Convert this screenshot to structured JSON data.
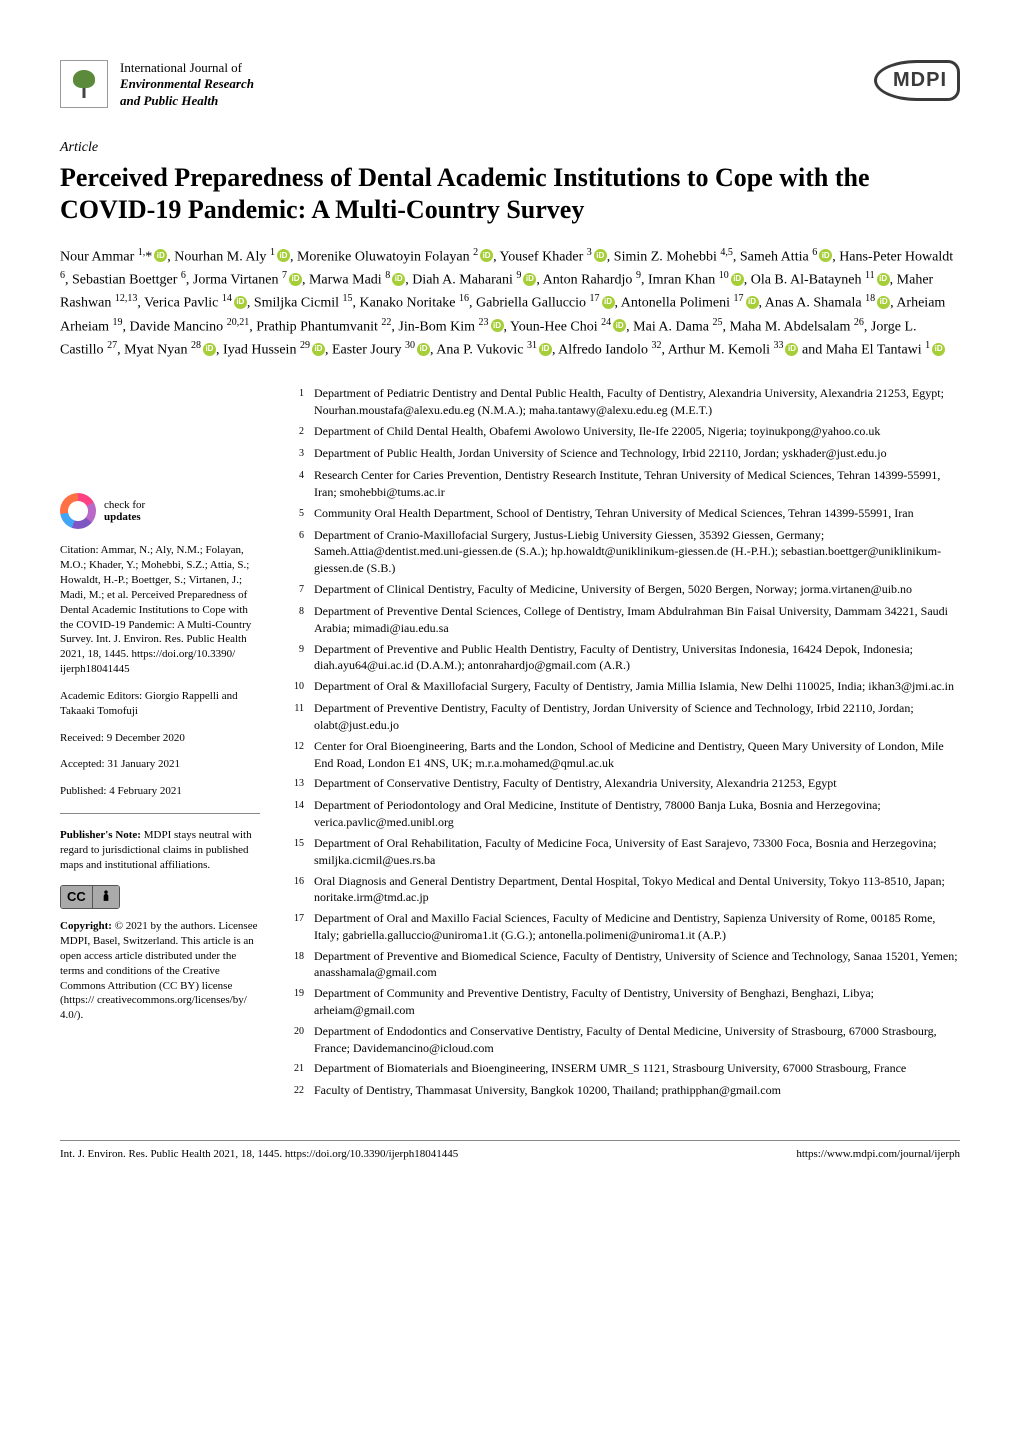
{
  "journal": {
    "line1": "International Journal of",
    "line2": "Environmental Research",
    "line3": "and Public Health"
  },
  "publisher_logo": "MDPI",
  "article_type": "Article",
  "title": "Perceived Preparedness of Dental Academic Institutions to Cope with the COVID-19 Pandemic: A Multi-Country Survey",
  "authors_html": "Nour Ammar <sup>1,</sup>*<ORCID>, Nourhan M. Aly <sup>1</sup><ORCID>, Morenike Oluwatoyin Folayan <sup>2</sup><ORCID>, Yousef Khader <sup>3</sup><ORCID>, Simin Z. Mohebbi <sup>4,5</sup>, Sameh Attia <sup>6</sup><ORCID>, Hans-Peter Howaldt <sup>6</sup>, Sebastian Boettger <sup>6</sup>, Jorma Virtanen <sup>7</sup><ORCID>, Marwa Madi <sup>8</sup><ORCID>, Diah A. Maharani <sup>9</sup><ORCID>, Anton Rahardjo <sup>9</sup>, Imran Khan <sup>10</sup><ORCID>, Ola B. Al-Batayneh <sup>11</sup><ORCID>, Maher Rashwan <sup>12,13</sup>, Verica Pavlic <sup>14</sup><ORCID>, Smiljka Cicmil <sup>15</sup>, Kanako Noritake <sup>16</sup>, Gabriella Galluccio <sup>17</sup><ORCID>, Antonella Polimeni <sup>17</sup><ORCID>, Anas A. Shamala <sup>18</sup><ORCID>, Arheiam Arheiam <sup>19</sup>, Davide Mancino <sup>20,21</sup>, Prathip Phantumvanit <sup>22</sup>, Jin-Bom Kim <sup>23</sup><ORCID>, Youn-Hee Choi <sup>24</sup><ORCID>, Mai A. Dama <sup>25</sup>, Maha M. Abdelsalam <sup>26</sup>, Jorge L. Castillo <sup>27</sup>, Myat Nyan <sup>28</sup><ORCID>, Iyad Hussein <sup>29</sup><ORCID>, Easter Joury <sup>30</sup><ORCID>, Ana P. Vukovic <sup>31</sup><ORCID>, Alfredo Iandolo <sup>32</sup>, Arthur M. Kemoli <sup>33</sup><ORCID> and Maha El Tantawi <sup>1</sup><ORCID>",
  "check_for": "check for",
  "updates": "updates",
  "citation": "Citation: Ammar, N.; Aly, N.M.; Folayan, M.O.; Khader, Y.; Mohebbi, S.Z.; Attia, S.; Howaldt, H.-P.; Boettger, S.; Virtanen, J.; Madi, M.; et al. Perceived Preparedness of Dental Academic Institutions to Cope with the COVID-19 Pandemic: A Multi-Country Survey. Int. J. Environ. Res. Public Health 2021, 18, 1445. https://doi.org/10.3390/ ijerph18041445",
  "editors": "Academic Editors: Giorgio Rappelli and Takaaki Tomofuji",
  "received": "Received: 9 December 2020",
  "accepted": "Accepted: 31 January 2021",
  "published": "Published: 4 February 2021",
  "pubnote": "Publisher's Note: MDPI stays neutral with regard to jurisdictional claims in published maps and institutional affiliations.",
  "copyright": "Copyright: © 2021 by the authors. Licensee MDPI, Basel, Switzerland. This article is an open access article distributed under the terms and conditions of the Creative Commons Attribution (CC BY) license (https:// creativecommons.org/licenses/by/ 4.0/).",
  "cc_label_cc": "CC",
  "cc_label_by": "BY",
  "affiliations": [
    {
      "n": "1",
      "t": "Department of Pediatric Dentistry and Dental Public Health, Faculty of Dentistry, Alexandria University, Alexandria 21253, Egypt; Nourhan.moustafa@alexu.edu.eg (N.M.A.); maha.tantawy@alexu.edu.eg (M.E.T.)"
    },
    {
      "n": "2",
      "t": "Department of Child Dental Health, Obafemi Awolowo University, Ile-Ife 22005, Nigeria; toyinukpong@yahoo.co.uk"
    },
    {
      "n": "3",
      "t": "Department of Public Health, Jordan University of Science and Technology, Irbid 22110, Jordan; yskhader@just.edu.jo"
    },
    {
      "n": "4",
      "t": "Research Center for Caries Prevention, Dentistry Research Institute, Tehran University of Medical Sciences, Tehran 14399-55991, Iran; smohebbi@tums.ac.ir"
    },
    {
      "n": "5",
      "t": "Community Oral Health Department, School of Dentistry, Tehran University of Medical Sciences, Tehran 14399-55991, Iran"
    },
    {
      "n": "6",
      "t": "Department of Cranio-Maxillofacial Surgery, Justus-Liebig University Giessen, 35392 Giessen, Germany; Sameh.Attia@dentist.med.uni-giessen.de (S.A.); hp.howaldt@uniklinikum-giessen.de (H.-P.H.); sebastian.boettger@uniklinikum-giessen.de (S.B.)"
    },
    {
      "n": "7",
      "t": "Department of Clinical Dentistry, Faculty of Medicine, University of Bergen, 5020 Bergen, Norway; jorma.virtanen@uib.no"
    },
    {
      "n": "8",
      "t": "Department of Preventive Dental Sciences, College of Dentistry, Imam Abdulrahman Bin Faisal University, Dammam 34221, Saudi Arabia; mimadi@iau.edu.sa"
    },
    {
      "n": "9",
      "t": "Department of Preventive and Public Health Dentistry, Faculty of Dentistry, Universitas Indonesia, 16424 Depok, Indonesia; diah.ayu64@ui.ac.id (D.A.M.); antonrahardjo@gmail.com (A.R.)"
    },
    {
      "n": "10",
      "t": "Department of Oral & Maxillofacial Surgery, Faculty of Dentistry, Jamia Millia Islamia, New Delhi 110025, India; ikhan3@jmi.ac.in"
    },
    {
      "n": "11",
      "t": "Department of Preventive Dentistry, Faculty of Dentistry, Jordan University of Science and Technology, Irbid 22110, Jordan; olabt@just.edu.jo"
    },
    {
      "n": "12",
      "t": "Center for Oral Bioengineering, Barts and the London, School of Medicine and Dentistry, Queen Mary University of London, Mile End Road, London E1 4NS, UK; m.r.a.mohamed@qmul.ac.uk"
    },
    {
      "n": "13",
      "t": "Department of Conservative Dentistry, Faculty of Dentistry, Alexandria University, Alexandria 21253, Egypt"
    },
    {
      "n": "14",
      "t": "Department of Periodontology and Oral Medicine, Institute of Dentistry, 78000 Banja Luka, Bosnia and Herzegovina; verica.pavlic@med.unibl.org"
    },
    {
      "n": "15",
      "t": "Department of Oral Rehabilitation, Faculty of Medicine Foca, University of East Sarajevo, 73300 Foca, Bosnia and Herzegovina; smiljka.cicmil@ues.rs.ba"
    },
    {
      "n": "16",
      "t": "Oral Diagnosis and General Dentistry Department, Dental Hospital, Tokyo Medical and Dental University, Tokyo 113-8510, Japan; noritake.irm@tmd.ac.jp"
    },
    {
      "n": "17",
      "t": "Department of Oral and Maxillo Facial Sciences, Faculty of Medicine and Dentistry, Sapienza University of Rome, 00185 Rome, Italy; gabriella.galluccio@uniroma1.it (G.G.); antonella.polimeni@uniroma1.it (A.P.)"
    },
    {
      "n": "18",
      "t": "Department of Preventive and Biomedical Science, Faculty of Dentistry, University of Science and Technology, Sanaa 15201, Yemen; anasshamala@gmail.com"
    },
    {
      "n": "19",
      "t": "Department of Community and Preventive Dentistry, Faculty of Dentistry, University of Benghazi, Benghazi, Libya; arheiam@gmail.com"
    },
    {
      "n": "20",
      "t": "Department of Endodontics and Conservative Dentistry, Faculty of Dental Medicine, University of Strasbourg, 67000 Strasbourg, France; Davidemancino@icloud.com"
    },
    {
      "n": "21",
      "t": "Department of Biomaterials and Bioengineering, INSERM UMR_S 1121, Strasbourg University, 67000 Strasbourg, France"
    },
    {
      "n": "22",
      "t": "Faculty of Dentistry, Thammasat University, Bangkok 10200, Thailand; prathipphan@gmail.com"
    }
  ],
  "footer_left": "Int. J. Environ. Res. Public Health 2021, 18, 1445. https://doi.org/10.3390/ijerph18041445",
  "footer_right": "https://www.mdpi.com/journal/ijerph"
}
